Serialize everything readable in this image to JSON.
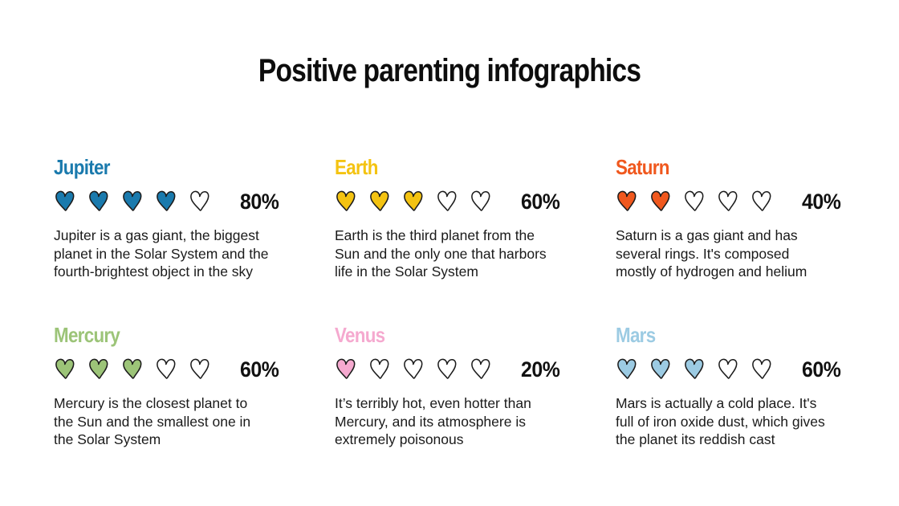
{
  "title": "Positive parenting infographics",
  "cards": [
    {
      "name": "Jupiter",
      "color": "#1a7aad",
      "percent": "80%",
      "level": 4,
      "total": 5,
      "lines": [
        "Jupiter is a gas giant, the biggest",
        "planet in the Solar System and the",
        "fourth-brightest object in the sky"
      ]
    },
    {
      "name": "Earth",
      "color": "#f4c311",
      "percent": "60%",
      "level": 3,
      "total": 5,
      "lines": [
        "Earth is the third planet from the",
        "Sun and the only one that harbors",
        "life in the Solar System"
      ]
    },
    {
      "name": "Saturn",
      "color": "#f0581e",
      "percent": "40%",
      "level": 2,
      "total": 5,
      "lines": [
        "Saturn is a gas giant and has",
        "several rings. It's composed",
        "mostly of hydrogen and helium"
      ]
    },
    {
      "name": "Mercury",
      "color": "#9cc478",
      "percent": "60%",
      "level": 3,
      "total": 5,
      "lines": [
        "Mercury is the closest planet to",
        "the Sun and the smallest one in",
        "the Solar System"
      ]
    },
    {
      "name": "Venus",
      "color": "#f5a9cf",
      "percent": "20%",
      "level": 1,
      "total": 5,
      "lines": [
        "It’s terribly hot, even hotter than",
        "Mercury, and its atmosphere is",
        "extremely poisonous"
      ]
    },
    {
      "name": "Mars",
      "color": "#9ccbe3",
      "percent": "60%",
      "level": 3,
      "total": 5,
      "lines": [
        "Mars is actually a cold place. It's",
        "full of iron oxide dust, which gives",
        "the planet its reddish cast"
      ]
    }
  ]
}
